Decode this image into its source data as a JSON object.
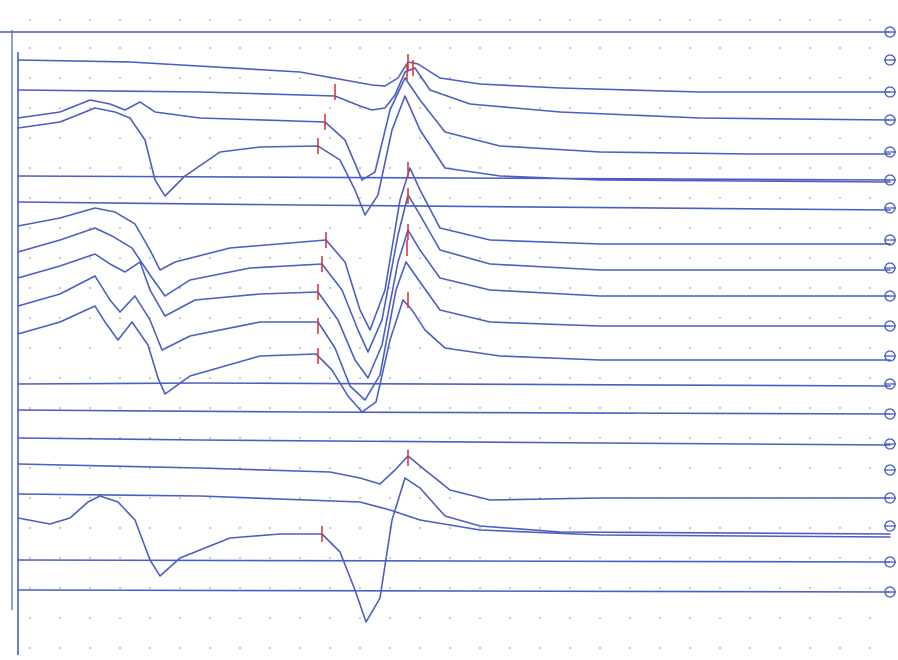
{
  "chart_data": {
    "type": "line",
    "grid": "dotted",
    "colors": {
      "trace": "#4a5fc1",
      "marker": "#d63a3a",
      "grid": "#9aa0b8"
    },
    "series": [
      {
        "baseline": 32,
        "segments": [
          [
            0,
            32
          ],
          [
            890,
            32
          ]
        ],
        "markers": []
      },
      {
        "baseline": 60,
        "segments": [
          [
            18,
            60
          ],
          [
            130,
            62
          ],
          [
            300,
            72
          ],
          [
            372,
            85
          ],
          [
            385,
            86
          ],
          [
            398,
            78
          ],
          [
            408,
            62
          ],
          [
            418,
            64
          ],
          [
            440,
            78
          ],
          [
            480,
            84
          ],
          [
            560,
            88
          ],
          [
            700,
            92
          ],
          [
            890,
            92
          ]
        ],
        "markers": [
          [
            408,
            62
          ]
        ]
      },
      {
        "baseline": 90,
        "segments": [
          [
            18,
            90
          ],
          [
            200,
            92
          ],
          [
            335,
            96
          ],
          [
            360,
            106
          ],
          [
            372,
            110
          ],
          [
            385,
            108
          ],
          [
            395,
            95
          ],
          [
            405,
            72
          ],
          [
            415,
            68
          ],
          [
            430,
            90
          ],
          [
            470,
            104
          ],
          [
            560,
            112
          ],
          [
            700,
            118
          ],
          [
            890,
            120
          ]
        ],
        "markers": [
          [
            335,
            92
          ],
          [
            407,
            72
          ],
          [
            413,
            68
          ]
        ]
      },
      {
        "baseline": 120,
        "segments": [
          [
            18,
            118
          ],
          [
            60,
            112
          ],
          [
            90,
            100
          ],
          [
            110,
            104
          ],
          [
            125,
            110
          ],
          [
            140,
            102
          ],
          [
            155,
            112
          ],
          [
            200,
            118
          ],
          [
            325,
            122
          ],
          [
            345,
            140
          ],
          [
            362,
            180
          ],
          [
            375,
            172
          ],
          [
            390,
            110
          ],
          [
            405,
            78
          ],
          [
            420,
            100
          ],
          [
            445,
            132
          ],
          [
            500,
            146
          ],
          [
            600,
            152
          ],
          [
            750,
            154
          ],
          [
            890,
            154
          ]
        ],
        "markers": [
          [
            325,
            122
          ]
        ]
      },
      {
        "baseline": 150,
        "segments": [
          [
            18,
            128
          ],
          [
            60,
            122
          ],
          [
            95,
            108
          ],
          [
            115,
            112
          ],
          [
            130,
            118
          ],
          [
            145,
            140
          ],
          [
            155,
            180
          ],
          [
            165,
            196
          ],
          [
            185,
            176
          ],
          [
            220,
            152
          ],
          [
            260,
            147
          ],
          [
            318,
            146
          ],
          [
            340,
            160
          ],
          [
            355,
            190
          ],
          [
            365,
            215
          ],
          [
            378,
            195
          ],
          [
            392,
            130
          ],
          [
            405,
            96
          ],
          [
            420,
            130
          ],
          [
            445,
            168
          ],
          [
            500,
            176
          ],
          [
            600,
            180
          ],
          [
            890,
            182
          ]
        ],
        "markers": [
          [
            318,
            146
          ]
        ]
      },
      {
        "baseline": 180,
        "segments": [
          [
            18,
            176
          ],
          [
            890,
            180
          ]
        ],
        "markers": []
      },
      {
        "baseline": 205,
        "segments": [
          [
            18,
            202
          ],
          [
            300,
            205
          ],
          [
            890,
            210
          ]
        ],
        "markers": []
      },
      {
        "baseline": 235,
        "segments": [
          [
            18,
            226
          ],
          [
            60,
            218
          ],
          [
            95,
            208
          ],
          [
            115,
            212
          ],
          [
            135,
            224
          ],
          [
            150,
            250
          ],
          [
            160,
            270
          ],
          [
            175,
            262
          ],
          [
            230,
            248
          ],
          [
            326,
            240
          ],
          [
            345,
            262
          ],
          [
            360,
            310
          ],
          [
            370,
            330
          ],
          [
            385,
            290
          ],
          [
            400,
            200
          ],
          [
            410,
            168
          ],
          [
            420,
            190
          ],
          [
            440,
            228
          ],
          [
            490,
            240
          ],
          [
            600,
            244
          ],
          [
            890,
            244
          ]
        ],
        "markers": [
          [
            408,
            170
          ],
          [
            326,
            240
          ]
        ]
      },
      {
        "baseline": 262,
        "segments": [
          [
            18,
            252
          ],
          [
            60,
            240
          ],
          [
            95,
            228
          ],
          [
            112,
            236
          ],
          [
            132,
            248
          ],
          [
            150,
            275
          ],
          [
            165,
            296
          ],
          [
            190,
            280
          ],
          [
            250,
            268
          ],
          [
            322,
            264
          ],
          [
            342,
            290
          ],
          [
            358,
            330
          ],
          [
            368,
            352
          ],
          [
            382,
            320
          ],
          [
            398,
            235
          ],
          [
            408,
            195
          ],
          [
            420,
            215
          ],
          [
            440,
            250
          ],
          [
            490,
            264
          ],
          [
            600,
            270
          ],
          [
            890,
            270
          ]
        ],
        "markers": [
          [
            408,
            196
          ],
          [
            322,
            264
          ]
        ]
      },
      {
        "baseline": 290,
        "segments": [
          [
            18,
            278
          ],
          [
            60,
            266
          ],
          [
            95,
            254
          ],
          [
            110,
            264
          ],
          [
            125,
            272
          ],
          [
            140,
            262
          ],
          [
            150,
            290
          ],
          [
            165,
            316
          ],
          [
            195,
            300
          ],
          [
            260,
            294
          ],
          [
            318,
            292
          ],
          [
            338,
            320
          ],
          [
            355,
            360
          ],
          [
            368,
            378
          ],
          [
            382,
            345
          ],
          [
            398,
            262
          ],
          [
            408,
            230
          ],
          [
            420,
            250
          ],
          [
            440,
            278
          ],
          [
            490,
            290
          ],
          [
            600,
            296
          ],
          [
            890,
            296
          ]
        ],
        "markers": [
          [
            408,
            232
          ],
          [
            318,
            292
          ]
        ]
      },
      {
        "baseline": 318,
        "segments": [
          [
            18,
            306
          ],
          [
            60,
            294
          ],
          [
            95,
            276
          ],
          [
            110,
            300
          ],
          [
            120,
            312
          ],
          [
            135,
            296
          ],
          [
            150,
            320
          ],
          [
            162,
            350
          ],
          [
            190,
            336
          ],
          [
            260,
            322
          ],
          [
            318,
            322
          ],
          [
            335,
            348
          ],
          [
            350,
            386
          ],
          [
            365,
            400
          ],
          [
            380,
            375
          ],
          [
            396,
            290
          ],
          [
            406,
            262
          ],
          [
            420,
            282
          ],
          [
            440,
            310
          ],
          [
            490,
            322
          ],
          [
            600,
            326
          ],
          [
            890,
            326
          ]
        ],
        "markers": [
          [
            407,
            248
          ],
          [
            318,
            326
          ]
        ]
      },
      {
        "baseline": 346,
        "segments": [
          [
            18,
            334
          ],
          [
            60,
            322
          ],
          [
            95,
            306
          ],
          [
            105,
            322
          ],
          [
            118,
            340
          ],
          [
            132,
            322
          ],
          [
            148,
            345
          ],
          [
            158,
            378
          ],
          [
            165,
            394
          ],
          [
            190,
            376
          ],
          [
            260,
            356
          ],
          [
            316,
            354
          ],
          [
            332,
            370
          ],
          [
            348,
            396
          ],
          [
            362,
            412
          ],
          [
            376,
            402
          ],
          [
            390,
            340
          ],
          [
            403,
            300
          ],
          [
            412,
            310
          ],
          [
            425,
            330
          ],
          [
            445,
            348
          ],
          [
            500,
            356
          ],
          [
            600,
            360
          ],
          [
            890,
            360
          ]
        ],
        "markers": [
          [
            408,
            300
          ],
          [
            318,
            356
          ]
        ]
      },
      {
        "baseline": 384,
        "segments": [
          [
            18,
            384
          ],
          [
            200,
            383
          ],
          [
            890,
            386
          ]
        ],
        "markers": []
      },
      {
        "baseline": 410,
        "segments": [
          [
            18,
            410
          ],
          [
            300,
            412
          ],
          [
            890,
            414
          ]
        ],
        "markers": []
      },
      {
        "baseline": 440,
        "segments": [
          [
            18,
            438
          ],
          [
            200,
            440
          ],
          [
            600,
            443
          ],
          [
            890,
            445
          ]
        ],
        "markers": []
      },
      {
        "baseline": 466,
        "segments": [
          [
            18,
            464
          ],
          [
            200,
            468
          ],
          [
            330,
            472
          ],
          [
            360,
            478
          ],
          [
            380,
            484
          ],
          [
            395,
            470
          ],
          [
            408,
            456
          ],
          [
            425,
            470
          ],
          [
            450,
            490
          ],
          [
            490,
            500
          ],
          [
            600,
            498
          ],
          [
            890,
            498
          ]
        ],
        "markers": [
          [
            408,
            458
          ]
        ]
      },
      {
        "baseline": 492,
        "segments": [
          [
            18,
            494
          ],
          [
            200,
            496
          ],
          [
            360,
            502
          ],
          [
            390,
            510
          ],
          [
            420,
            520
          ],
          [
            480,
            530
          ],
          [
            600,
            535
          ],
          [
            890,
            537
          ]
        ],
        "markers": []
      },
      {
        "baseline": 520,
        "segments": [
          [
            18,
            518
          ],
          [
            50,
            524
          ],
          [
            70,
            518
          ],
          [
            88,
            502
          ],
          [
            100,
            496
          ],
          [
            118,
            502
          ],
          [
            135,
            520
          ],
          [
            150,
            560
          ],
          [
            160,
            576
          ],
          [
            180,
            558
          ],
          [
            230,
            538
          ],
          [
            280,
            534
          ],
          [
            322,
            534
          ],
          [
            340,
            552
          ],
          [
            355,
            590
          ],
          [
            366,
            622
          ],
          [
            380,
            598
          ],
          [
            392,
            520
          ],
          [
            405,
            478
          ],
          [
            420,
            488
          ],
          [
            445,
            516
          ],
          [
            480,
            526
          ],
          [
            560,
            532
          ],
          [
            890,
            534
          ]
        ],
        "markers": [
          [
            322,
            534
          ]
        ]
      },
      {
        "baseline": 565,
        "segments": [
          [
            18,
            560
          ],
          [
            890,
            562
          ]
        ],
        "markers": []
      },
      {
        "baseline": 592,
        "segments": [
          [
            18,
            590
          ],
          [
            890,
            592
          ]
        ],
        "markers": []
      }
    ],
    "handles_y": [
      32,
      60,
      92,
      120,
      152,
      180,
      208,
      240,
      268,
      296,
      326,
      356,
      384,
      414,
      444,
      470,
      498,
      526,
      562,
      592
    ]
  }
}
